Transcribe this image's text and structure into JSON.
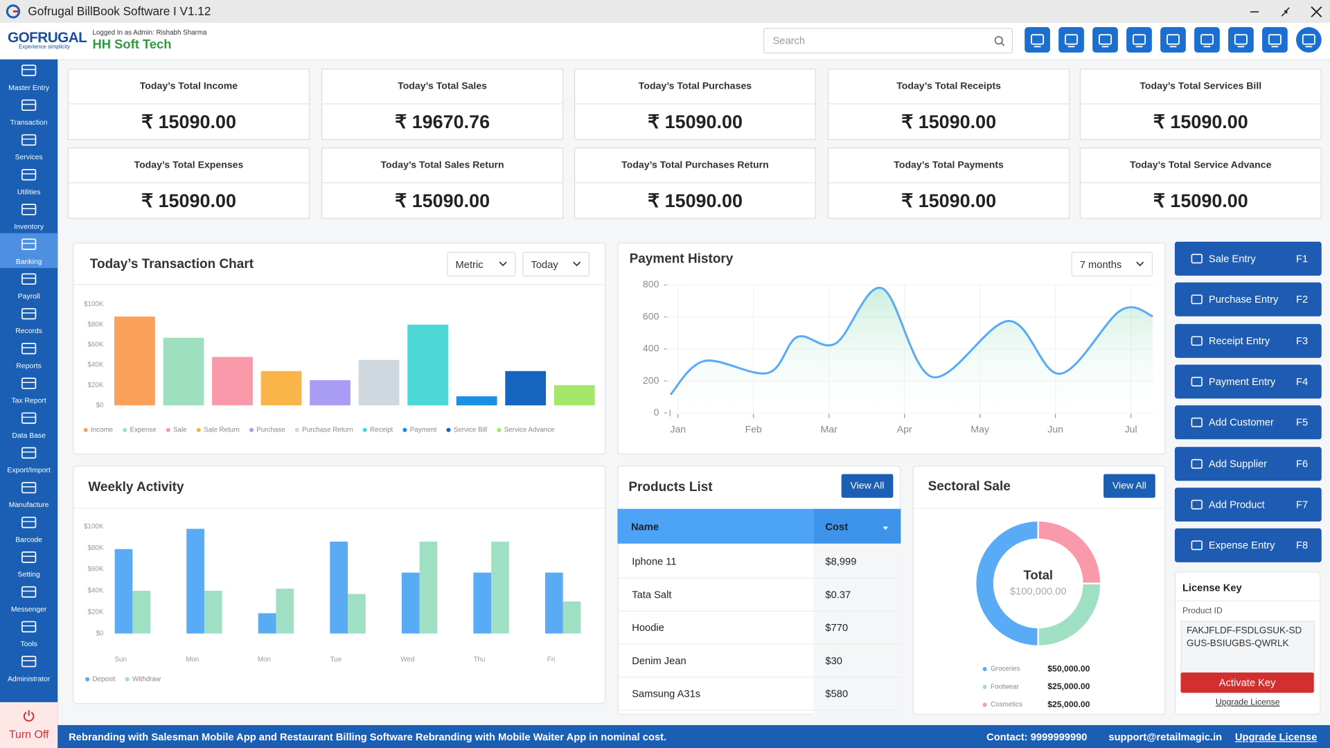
{
  "window": {
    "title": "Gofrugal BillBook Software I V1.12"
  },
  "header": {
    "logo": "GOFRUGAL",
    "tagline": "Experience simplicity",
    "logged_in": "Logged In as Admin: Rishabh Sharma",
    "company": "HH Soft Tech",
    "search_placeholder": "Search"
  },
  "sidebar": {
    "items": [
      "Master Entry",
      "Transaction",
      "Services",
      "Utilities",
      "Inventory",
      "Banking",
      "Payroll",
      "Records",
      "Reports",
      "Tax Report",
      "Data Base",
      "Export/Import",
      "Manufacture",
      "Barcode",
      "Setting",
      "Messenger",
      "Tools",
      "Administrator"
    ],
    "active": 5,
    "turn_off": "Turn Off"
  },
  "stats": [
    {
      "label": "Today’s Total Income",
      "value": "₹ 15090.00"
    },
    {
      "label": "Today’s Total Sales",
      "value": "₹ 19670.76"
    },
    {
      "label": "Today’s Total Purchases",
      "value": "₹ 15090.00"
    },
    {
      "label": "Today’s Total Receipts",
      "value": "₹ 15090.00"
    },
    {
      "label": "Today’s Total Services Bill",
      "value": "₹ 15090.00"
    },
    {
      "label": "Today’s Total Expenses",
      "value": "₹ 15090.00"
    },
    {
      "label": "Today’s Total Sales Return",
      "value": "₹ 15090.00"
    },
    {
      "label": "Today’s Total Purchases Return",
      "value": "₹ 15090.00"
    },
    {
      "label": "Today’s Total Payments",
      "value": "₹ 15090.00"
    },
    {
      "label": "Today’s Total Service Advance",
      "value": "₹ 15090.00"
    }
  ],
  "quick_actions": [
    {
      "label": "Sale Entry",
      "key": "F1"
    },
    {
      "label": "Purchase Entry",
      "key": "F2"
    },
    {
      "label": "Receipt Entry",
      "key": "F3"
    },
    {
      "label": "Payment Entry",
      "key": "F4"
    },
    {
      "label": "Add Customer",
      "key": "F5"
    },
    {
      "label": "Add Supplier",
      "key": "F6"
    },
    {
      "label": "Add Product",
      "key": "F7"
    },
    {
      "label": "Expense Entry",
      "key": "F8"
    }
  ],
  "products": {
    "title": "Products List",
    "view_all": "View All",
    "columns": [
      "Name",
      "Cost"
    ],
    "rows": [
      [
        "Iphone 11",
        "$8,999"
      ],
      [
        "Tata Salt",
        "$0.37"
      ],
      [
        "Hoodie",
        "$770"
      ],
      [
        "Denim Jean",
        "$30"
      ],
      [
        "Samsung A31s",
        "$580"
      ]
    ]
  },
  "license": {
    "title": "License Key",
    "field_label": "Product ID",
    "key": "FAKJFLDF-FSDLGSUK-SDGUS-BSIUGBS-QWRLK",
    "activate": "Activate Key",
    "upgrade": "Upgrade License"
  },
  "footer": {
    "message": "Rebranding with Salesman Mobile App and Restaurant Billing Software Rebranding with Mobile Waiter App in nominal cost.",
    "contact": "Contact: 9999999990",
    "email": "support@retailmagic.in",
    "upgrade": "Upgrade License"
  },
  "chart_data": [
    {
      "type": "bar",
      "title": "Today’s Transaction Chart",
      "controls": [
        "Metric",
        "Today"
      ],
      "categories": [
        "Income",
        "Expense",
        "Sale",
        "Sale Return",
        "Purchase",
        "Purchase Return",
        "Receipt",
        "Payment",
        "Service Bill",
        "Service Advance"
      ],
      "values": [
        88000,
        67000,
        48000,
        34000,
        25000,
        45000,
        80000,
        9000,
        34000,
        20000
      ],
      "colors": [
        "#f9a05a",
        "#9edfc0",
        "#f99aaa",
        "#f9b54a",
        "#a99cf4",
        "#cfd8de",
        "#4dd8d8",
        "#1a8fe3",
        "#1565c0",
        "#a4e76b"
      ],
      "ylim": [
        0,
        100000
      ],
      "yticks": [
        {
          "value": 0,
          "label": "$0"
        },
        {
          "value": 20000,
          "label": "$20K"
        },
        {
          "value": 40000,
          "label": "$40K"
        },
        {
          "value": 60000,
          "label": "$60K"
        },
        {
          "value": 80000,
          "label": "$80K"
        },
        {
          "value": 100000,
          "label": "$100K"
        }
      ],
      "grid": false,
      "legend": "bottom"
    },
    {
      "type": "line",
      "title": "Payment History",
      "controls": [
        "7 months"
      ],
      "x": [
        -0.1,
        0.35,
        1.19,
        1.58,
        2.09,
        2.7,
        3.37,
        4.38,
        5.06,
        5.86,
        6.29
      ],
      "xlim": [
        -0.15,
        6.3
      ],
      "xticks": [
        {
          "value": 0,
          "label": "Jan"
        },
        {
          "value": 1,
          "label": "Feb"
        },
        {
          "value": 2,
          "label": "Mar"
        },
        {
          "value": 3,
          "label": "Apr"
        },
        {
          "value": 4,
          "label": "May"
        },
        {
          "value": 5,
          "label": "Jun"
        },
        {
          "value": 6,
          "label": "Jul"
        }
      ],
      "series": [
        {
          "color": "#5aabf5",
          "values": [
            115,
            325,
            250,
            475,
            435,
            780,
            225,
            575,
            245,
            640,
            605
          ]
        }
      ],
      "ylim": [
        0,
        800
      ],
      "yticks": [
        0,
        200,
        400,
        600,
        800
      ],
      "grid": true
    },
    {
      "type": "grouped_bar",
      "title": "Weekly Activity",
      "categories": [
        "Sun",
        "Mon",
        "Mon",
        "Tue",
        "Wed",
        "Thu",
        "Fri"
      ],
      "series": [
        {
          "name": "Deposit",
          "color": "#5aabf5",
          "values": [
            79000,
            98000,
            19000,
            86000,
            57000,
            57000,
            57000
          ]
        },
        {
          "name": "Withdraw",
          "color": "#9fe0c4",
          "values": [
            40000,
            40000,
            42000,
            37000,
            86000,
            86000,
            30000
          ]
        }
      ],
      "ylim": [
        0,
        100000
      ],
      "yticks": [
        {
          "value": 0,
          "label": "$0"
        },
        {
          "value": 20000,
          "label": "$20K"
        },
        {
          "value": 40000,
          "label": "$40K"
        },
        {
          "value": 60000,
          "label": "$60K"
        },
        {
          "value": 80000,
          "label": "$80K"
        },
        {
          "value": 100000,
          "label": "$100K"
        }
      ],
      "grid": false,
      "legend": "bottom"
    },
    {
      "type": "donut",
      "title": "Sectoral Sale",
      "view_all": "View All",
      "center_label": "Total",
      "center_value": "$100,000.00",
      "categories": [
        "Groceries",
        "Footwear",
        "Cosmetics"
      ],
      "values": [
        50000,
        25000,
        25000
      ],
      "value_labels": [
        "$50,000.00",
        "$25,000.00",
        "$25,000.00"
      ],
      "colors": [
        "#5aabf5",
        "#9fe0c4",
        "#f99aaa"
      ]
    }
  ]
}
